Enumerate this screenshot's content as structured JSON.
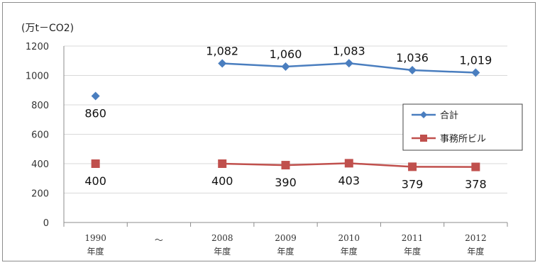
{
  "chart_data": {
    "type": "line",
    "unit_label": "(万t－CO2)",
    "ylim": [
      0,
      1200
    ],
    "yticks": [
      "0",
      "200",
      "400",
      "600",
      "800",
      "1000",
      "1200"
    ],
    "categories": [
      {
        "year": "1990",
        "suffix": "年度"
      },
      {
        "year": "～",
        "suffix": ""
      },
      {
        "year": "2008",
        "suffix": "年度"
      },
      {
        "year": "2009",
        "suffix": "年度"
      },
      {
        "year": "2010",
        "suffix": "年度"
      },
      {
        "year": "2011",
        "suffix": "年度"
      },
      {
        "year": "2012",
        "suffix": "年度"
      }
    ],
    "grid": true,
    "legend_position": "right",
    "series": [
      {
        "name": "合計",
        "color": "#4a7ebf",
        "marker": "diamond",
        "values": [
          860,
          null,
          1082,
          1060,
          1083,
          1036,
          1019
        ],
        "labels": [
          "860",
          "",
          "1,082",
          "1,060",
          "1,083",
          "1,036",
          "1,019"
        ]
      },
      {
        "name": "事務所ビル",
        "color": "#c0504d",
        "marker": "square",
        "values": [
          400,
          null,
          400,
          390,
          403,
          379,
          378
        ],
        "labels": [
          "400",
          "",
          "400",
          "390",
          "403",
          "379",
          "378"
        ]
      }
    ]
  }
}
